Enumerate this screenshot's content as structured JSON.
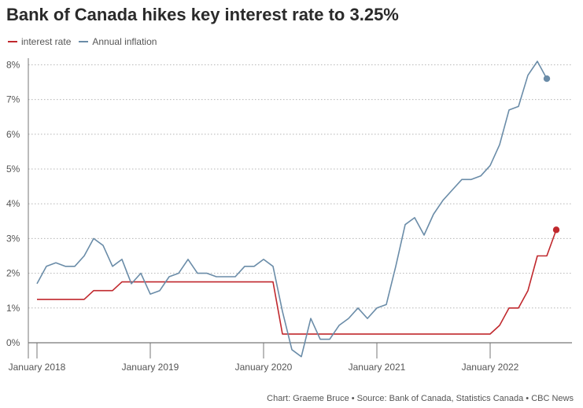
{
  "chart_data": {
    "type": "line",
    "title": "Bank of Canada hikes key interest rate to 3.25%",
    "credit": "Chart: Graeme Bruce • Source: Bank of Canada, Statistics Canada • CBC News",
    "y_ticks": [
      "0%",
      "1%",
      "2%",
      "3%",
      "4%",
      "5%",
      "6%",
      "7%",
      "8%"
    ],
    "ylim": [
      0,
      8
    ],
    "x_ticks": [
      {
        "label": "January 2018",
        "date": "2018-01"
      },
      {
        "label": "January 2019",
        "date": "2019-01"
      },
      {
        "label": "January 2020",
        "date": "2020-01"
      },
      {
        "label": "January 2021",
        "date": "2021-01"
      },
      {
        "label": "January 2022",
        "date": "2022-01"
      }
    ],
    "grid": true,
    "legend_position": "top-left",
    "series": [
      {
        "name": "interest rate",
        "color": "#c0282d",
        "endpoint_marker": true,
        "points": [
          [
            "2018-01",
            1.25
          ],
          [
            "2018-02",
            1.25
          ],
          [
            "2018-03",
            1.25
          ],
          [
            "2018-04",
            1.25
          ],
          [
            "2018-05",
            1.25
          ],
          [
            "2018-06",
            1.25
          ],
          [
            "2018-07",
            1.5
          ],
          [
            "2018-08",
            1.5
          ],
          [
            "2018-09",
            1.5
          ],
          [
            "2018-10",
            1.75
          ],
          [
            "2018-11",
            1.75
          ],
          [
            "2018-12",
            1.75
          ],
          [
            "2019-01",
            1.75
          ],
          [
            "2019-02",
            1.75
          ],
          [
            "2019-03",
            1.75
          ],
          [
            "2019-04",
            1.75
          ],
          [
            "2019-05",
            1.75
          ],
          [
            "2019-06",
            1.75
          ],
          [
            "2019-07",
            1.75
          ],
          [
            "2019-08",
            1.75
          ],
          [
            "2019-09",
            1.75
          ],
          [
            "2019-10",
            1.75
          ],
          [
            "2019-11",
            1.75
          ],
          [
            "2019-12",
            1.75
          ],
          [
            "2020-01",
            1.75
          ],
          [
            "2020-02",
            1.75
          ],
          [
            "2020-03",
            0.25
          ],
          [
            "2020-04",
            0.25
          ],
          [
            "2020-05",
            0.25
          ],
          [
            "2020-06",
            0.25
          ],
          [
            "2020-07",
            0.25
          ],
          [
            "2020-08",
            0.25
          ],
          [
            "2020-09",
            0.25
          ],
          [
            "2020-10",
            0.25
          ],
          [
            "2020-11",
            0.25
          ],
          [
            "2020-12",
            0.25
          ],
          [
            "2021-01",
            0.25
          ],
          [
            "2021-02",
            0.25
          ],
          [
            "2021-03",
            0.25
          ],
          [
            "2021-04",
            0.25
          ],
          [
            "2021-05",
            0.25
          ],
          [
            "2021-06",
            0.25
          ],
          [
            "2021-07",
            0.25
          ],
          [
            "2021-08",
            0.25
          ],
          [
            "2021-09",
            0.25
          ],
          [
            "2021-10",
            0.25
          ],
          [
            "2021-11",
            0.25
          ],
          [
            "2021-12",
            0.25
          ],
          [
            "2022-01",
            0.25
          ],
          [
            "2022-02",
            0.5
          ],
          [
            "2022-03",
            1.0
          ],
          [
            "2022-04",
            1.0
          ],
          [
            "2022-05",
            1.5
          ],
          [
            "2022-06",
            2.5
          ],
          [
            "2022-07",
            2.5
          ],
          [
            "2022-08",
            3.25
          ]
        ]
      },
      {
        "name": "Annual inflation",
        "color": "#6a8ca8",
        "endpoint_marker": true,
        "points": [
          [
            "2018-01",
            1.7
          ],
          [
            "2018-02",
            2.2
          ],
          [
            "2018-03",
            2.3
          ],
          [
            "2018-04",
            2.2
          ],
          [
            "2018-05",
            2.2
          ],
          [
            "2018-06",
            2.5
          ],
          [
            "2018-07",
            3.0
          ],
          [
            "2018-08",
            2.8
          ],
          [
            "2018-09",
            2.2
          ],
          [
            "2018-10",
            2.4
          ],
          [
            "2018-11",
            1.7
          ],
          [
            "2018-12",
            2.0
          ],
          [
            "2019-01",
            1.4
          ],
          [
            "2019-02",
            1.5
          ],
          [
            "2019-03",
            1.9
          ],
          [
            "2019-04",
            2.0
          ],
          [
            "2019-05",
            2.4
          ],
          [
            "2019-06",
            2.0
          ],
          [
            "2019-07",
            2.0
          ],
          [
            "2019-08",
            1.9
          ],
          [
            "2019-09",
            1.9
          ],
          [
            "2019-10",
            1.9
          ],
          [
            "2019-11",
            2.2
          ],
          [
            "2019-12",
            2.2
          ],
          [
            "2020-01",
            2.4
          ],
          [
            "2020-02",
            2.2
          ],
          [
            "2020-03",
            0.9
          ],
          [
            "2020-04",
            -0.2
          ],
          [
            "2020-05",
            -0.4
          ],
          [
            "2020-06",
            0.7
          ],
          [
            "2020-07",
            0.1
          ],
          [
            "2020-08",
            0.1
          ],
          [
            "2020-09",
            0.5
          ],
          [
            "2020-10",
            0.7
          ],
          [
            "2020-11",
            1.0
          ],
          [
            "2020-12",
            0.7
          ],
          [
            "2021-01",
            1.0
          ],
          [
            "2021-02",
            1.1
          ],
          [
            "2021-03",
            2.2
          ],
          [
            "2021-04",
            3.4
          ],
          [
            "2021-05",
            3.6
          ],
          [
            "2021-06",
            3.1
          ],
          [
            "2021-07",
            3.7
          ],
          [
            "2021-08",
            4.1
          ],
          [
            "2021-09",
            4.4
          ],
          [
            "2021-10",
            4.7
          ],
          [
            "2021-11",
            4.7
          ],
          [
            "2021-12",
            4.8
          ],
          [
            "2022-01",
            5.1
          ],
          [
            "2022-02",
            5.7
          ],
          [
            "2022-03",
            6.7
          ],
          [
            "2022-04",
            6.8
          ],
          [
            "2022-05",
            7.7
          ],
          [
            "2022-06",
            8.1
          ],
          [
            "2022-07",
            7.6
          ]
        ]
      }
    ]
  }
}
